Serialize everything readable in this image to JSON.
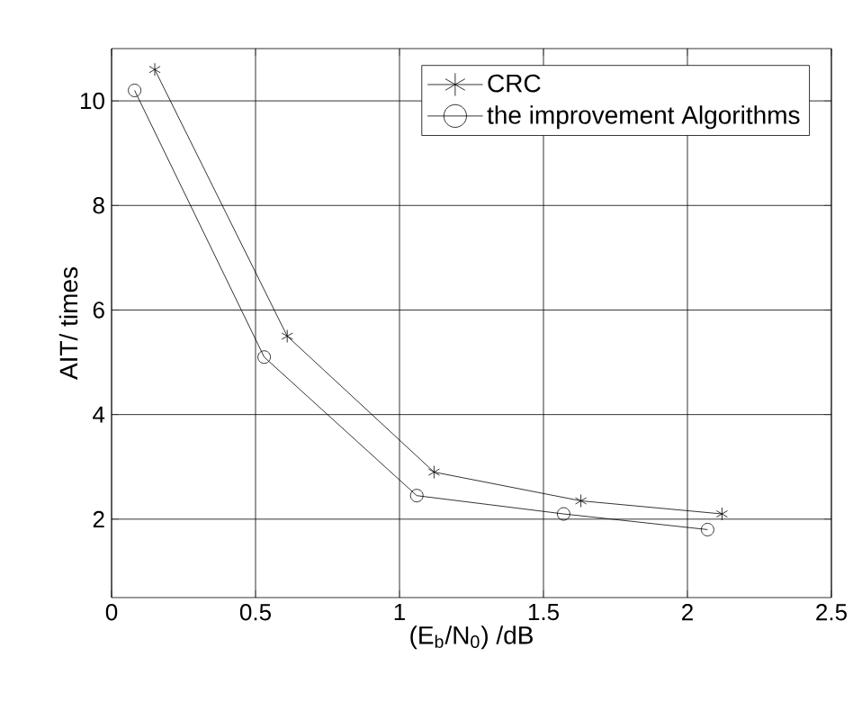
{
  "chart_data": {
    "type": "line",
    "xlabel": "(E$_{b}$/N$_{0}$) /dB",
    "ylabel": "AIT/ times",
    "xlim": [
      0,
      2.5
    ],
    "xticks": [
      0,
      0.5,
      1,
      1.5,
      2,
      2.5
    ],
    "ylim": [
      0.5,
      11
    ],
    "yticks": [
      2,
      4,
      6,
      8,
      10
    ],
    "grid": true,
    "legend": "top right",
    "line_style": "solid",
    "series": [
      {
        "name": "CRC",
        "color": "#000000",
        "marker": "cross",
        "x": [
          0.15,
          0.61,
          1.12,
          1.63,
          2.12
        ],
        "values": [
          10.6,
          5.5,
          2.9,
          2.35,
          2.1
        ]
      },
      {
        "name": "the improvement Algorithms",
        "color": "#000000",
        "marker": "circle",
        "x": [
          0.08,
          0.53,
          1.06,
          1.57,
          2.07
        ],
        "values": [
          10.2,
          5.1,
          2.45,
          2.1,
          1.8
        ]
      }
    ]
  }
}
